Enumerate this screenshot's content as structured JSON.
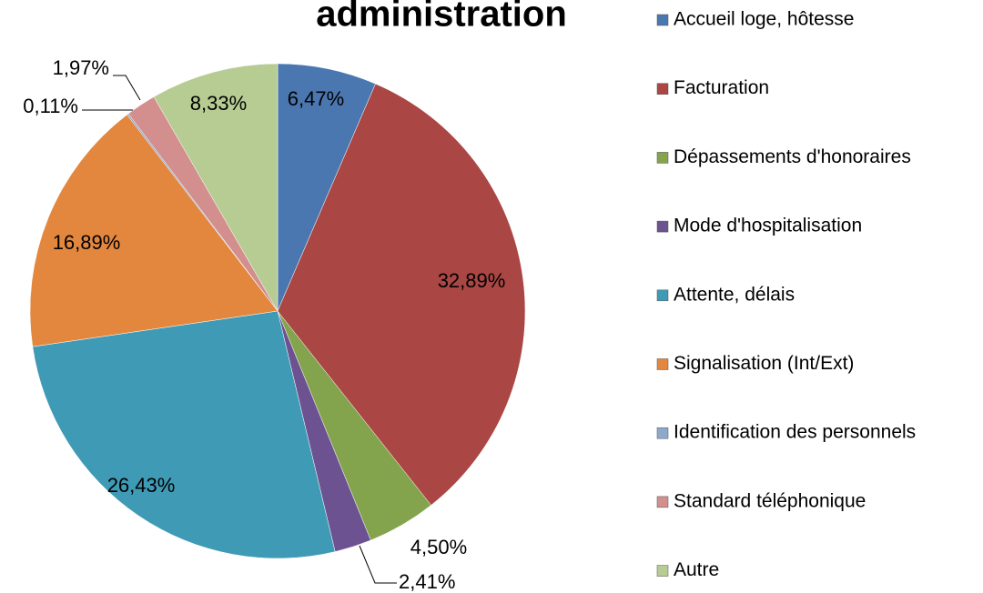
{
  "chart_data": {
    "type": "pie",
    "title": "administration",
    "categories": [
      "Accueil loge, hôtesse",
      "Facturation",
      "Dépassements d'honoraires",
      "Mode d'hospitalisation",
      "Attente, délais",
      "Signalisation (Int/Ext)",
      "Identification des personnels",
      "Standard téléphonique",
      "Autre"
    ],
    "values": [
      6.47,
      32.89,
      4.5,
      2.41,
      26.43,
      16.89,
      0.11,
      1.97,
      8.33
    ],
    "value_labels": [
      "6,47%",
      "32,89%",
      "4,50%",
      "2,41%",
      "26,43%",
      "16,89%",
      "0,11%",
      "1,97%",
      "8,33%"
    ],
    "colors": [
      "#4a77b0",
      "#aa4643",
      "#84a34d",
      "#6c5290",
      "#3f9ab5",
      "#e3873f",
      "#8ea8cc",
      "#d28f8e",
      "#b6cc92"
    ],
    "legend": "right"
  }
}
